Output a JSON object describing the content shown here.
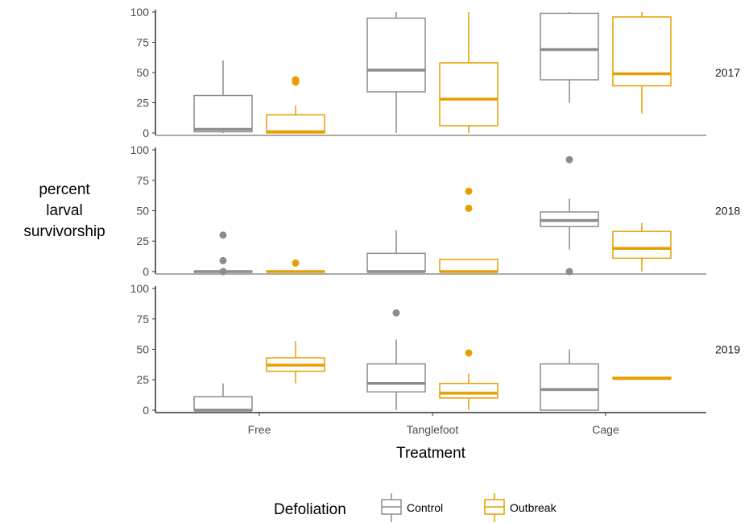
{
  "chart_data": {
    "type": "boxplot",
    "xlabel": "Treatment",
    "ylabel_lines": [
      "percent",
      "larval",
      "survivorship"
    ],
    "categories": [
      "Free",
      "Tanglefoot",
      "Cage"
    ],
    "y_ticks": [
      0,
      25,
      50,
      75,
      100
    ],
    "ylim": [
      -2,
      102
    ],
    "facets": [
      "2017",
      "2018",
      "2019"
    ],
    "legend": {
      "title": "Defoliation",
      "position": "bottom",
      "entries": [
        {
          "name": "Control",
          "color": "#8c8c8c"
        },
        {
          "name": "Outbreak",
          "color": "#e69f00"
        }
      ]
    },
    "series": [
      {
        "name": "Control",
        "color": "#8c8c8c",
        "boxes": {
          "2017": [
            {
              "category": "Free",
              "min": 0,
              "q1": 1,
              "median": 3,
              "q3": 31,
              "max": 60,
              "outliers": []
            },
            {
              "category": "Tanglefoot",
              "min": 0,
              "q1": 34,
              "median": 52,
              "q3": 95,
              "max": 100,
              "outliers": []
            },
            {
              "category": "Cage",
              "min": 25,
              "q1": 44,
              "median": 69,
              "q3": 99,
              "max": 100,
              "outliers": []
            }
          ],
          "2018": [
            {
              "category": "Free",
              "min": 0,
              "q1": 0,
              "median": 0,
              "q3": 0,
              "max": 0,
              "outliers": [
                0,
                9,
                30
              ]
            },
            {
              "category": "Tanglefoot",
              "min": 0,
              "q1": 0,
              "median": 0,
              "q3": 15,
              "max": 34,
              "outliers": []
            },
            {
              "category": "Cage",
              "min": 18,
              "q1": 37,
              "median": 42,
              "q3": 49,
              "max": 60,
              "outliers": [
                0,
                92
              ]
            }
          ],
          "2019": [
            {
              "category": "Free",
              "min": 0,
              "q1": 0,
              "median": 0,
              "q3": 11,
              "max": 22,
              "outliers": []
            },
            {
              "category": "Tanglefoot",
              "min": 0,
              "q1": 15,
              "median": 22,
              "q3": 38,
              "max": 58,
              "outliers": [
                80
              ]
            },
            {
              "category": "Cage",
              "min": 0,
              "q1": 0,
              "median": 17,
              "q3": 38,
              "max": 50,
              "outliers": []
            }
          ]
        }
      },
      {
        "name": "Outbreak",
        "color": "#e69f00",
        "boxes": {
          "2017": [
            {
              "category": "Free",
              "min": 0,
              "q1": 0,
              "median": 1,
              "q3": 15,
              "max": 23,
              "outliers": [
                42,
                44
              ]
            },
            {
              "category": "Tanglefoot",
              "min": 0,
              "q1": 6,
              "median": 28,
              "q3": 58,
              "max": 100,
              "outliers": []
            },
            {
              "category": "Cage",
              "min": 16,
              "q1": 39,
              "median": 49,
              "q3": 96,
              "max": 100,
              "outliers": []
            }
          ],
          "2018": [
            {
              "category": "Free",
              "min": 0,
              "q1": 0,
              "median": 0,
              "q3": 0,
              "max": 0,
              "outliers": [
                7
              ]
            },
            {
              "category": "Tanglefoot",
              "min": 0,
              "q1": 0,
              "median": 0,
              "q3": 10,
              "max": 10,
              "outliers": [
                52,
                66
              ]
            },
            {
              "category": "Cage",
              "min": 0,
              "q1": 11,
              "median": 19,
              "q3": 33,
              "max": 40,
              "outliers": []
            }
          ],
          "2019": [
            {
              "category": "Free",
              "min": 22,
              "q1": 32,
              "median": 37,
              "q3": 43,
              "max": 57,
              "outliers": []
            },
            {
              "category": "Tanglefoot",
              "min": 0,
              "q1": 10,
              "median": 14,
              "q3": 22,
              "max": 30,
              "outliers": [
                47
              ]
            },
            {
              "category": "Cage",
              "min": 26,
              "q1": 26,
              "median": 26,
              "q3": 27,
              "max": 27,
              "outliers": []
            }
          ]
        }
      }
    ]
  }
}
